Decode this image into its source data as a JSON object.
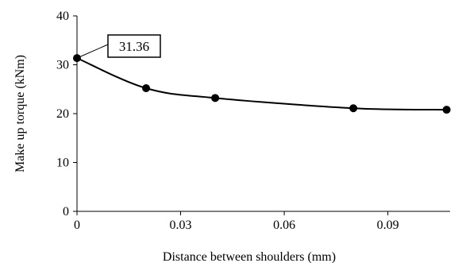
{
  "chart_data": {
    "type": "scatter",
    "title": "",
    "xlabel": "Distance between shoulders (mm)",
    "ylabel": "Make up torque (kNm)",
    "xlim": [
      0,
      0.108
    ],
    "ylim": [
      0,
      40
    ],
    "xticks": [
      0,
      0.03,
      0.06,
      0.09
    ],
    "xtick_labels": [
      "0",
      "0.03",
      "0.06",
      "0.09"
    ],
    "yticks": [
      0,
      10,
      20,
      30,
      40
    ],
    "ytick_labels": [
      "0",
      "10",
      "20",
      "30",
      "40"
    ],
    "grid": false,
    "legend": "none",
    "smooth_line": true,
    "colors": {
      "line": "#000000",
      "marker": "#000000",
      "axis": "#000000"
    },
    "series": [
      {
        "x": [
          0,
          0.02,
          0.04,
          0.08,
          0.107
        ],
        "y": [
          31.36,
          25.2,
          23.2,
          21.1,
          20.8
        ]
      }
    ],
    "annotations": [
      {
        "text": "31.36",
        "x": 0,
        "y": 31.36
      }
    ]
  }
}
